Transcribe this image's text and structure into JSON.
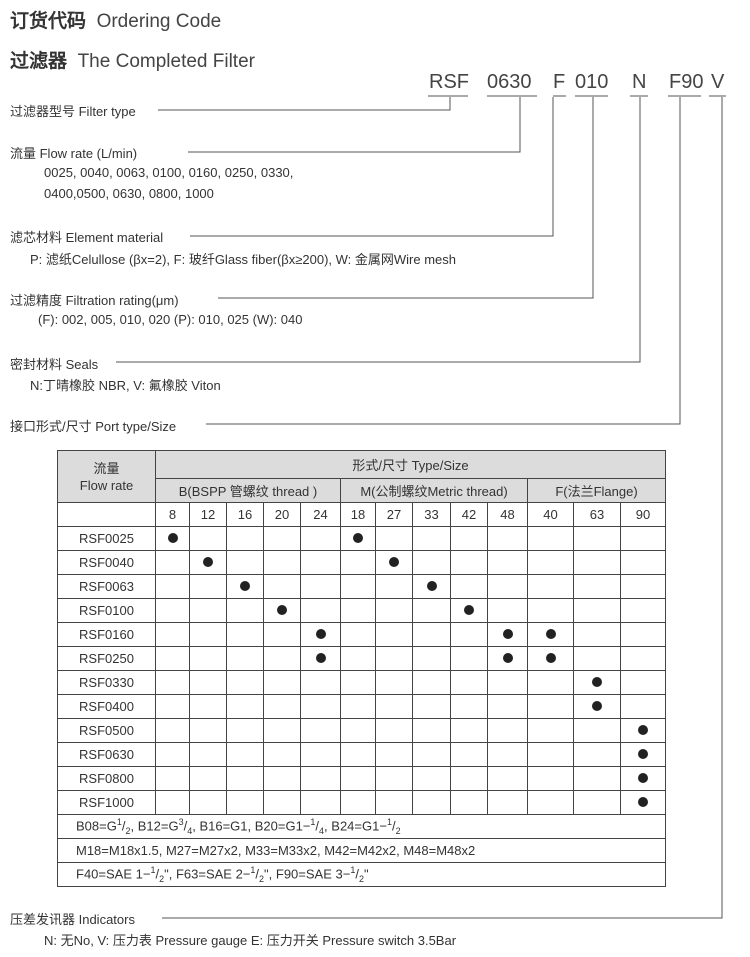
{
  "title1": {
    "cn": "订货代码",
    "en": "Ordering Code"
  },
  "title2": {
    "cn": "过滤器",
    "en": "The Completed Filter"
  },
  "code": [
    "RSF",
    "0630",
    "F",
    "010",
    "N",
    "F90",
    "V"
  ],
  "fields": [
    {
      "label": "过滤器型号 Filter type"
    },
    {
      "label": "流量 Flow rate (L/min)",
      "desc": [
        "0025, 0040, 0063, 0100, 0160, 0250, 0330,",
        "0400,0500, 0630, 0800, 1000"
      ]
    },
    {
      "label": "滤芯材料 Element material",
      "desc": [
        "P: 滤纸Celullose (βx=2),  F: 玻纤Glass fiber(βx≥200), W: 金属网Wire mesh"
      ]
    },
    {
      "label": "过滤精度 Filtration rating(μm)",
      "desc": [
        "(F): 002, 005, 010, 020 (P): 010, 025 (W): 040"
      ]
    },
    {
      "label": "密封材料 Seals",
      "desc": [
        "N:丁晴橡胶 NBR,  V: 氟橡胶 Viton"
      ]
    },
    {
      "label": "接口形式/尺寸 Port type/Size"
    },
    {
      "label": "压差发讯器 Indicators",
      "desc": [
        "N: 无No,  V: 压力表 Pressure gauge  E: 压力开关 Pressure switch 3.5Bar"
      ]
    }
  ],
  "table": {
    "flow_cn": "流量",
    "flow_en": "Flow rate",
    "type_header": "形式/尺寸  Type/Size",
    "groups": [
      "B(BSPP 管螺纹 thread )",
      "M(公制螺纹Metric thread)",
      "F(法兰Flange)"
    ],
    "sizes": [
      "8",
      "12",
      "16",
      "20",
      "24",
      "18",
      "27",
      "33",
      "42",
      "48",
      "40",
      "63",
      "90"
    ],
    "rows": [
      {
        "model": "RSF0025",
        "marks": [
          0,
          5
        ]
      },
      {
        "model": "RSF0040",
        "marks": [
          1,
          6
        ]
      },
      {
        "model": "RSF0063",
        "marks": [
          2,
          7
        ]
      },
      {
        "model": "RSF0100",
        "marks": [
          3,
          8
        ]
      },
      {
        "model": "RSF0160",
        "marks": [
          4,
          9,
          10
        ]
      },
      {
        "model": "RSF0250",
        "marks": [
          4,
          9,
          10
        ]
      },
      {
        "model": "RSF0330",
        "marks": [
          11
        ]
      },
      {
        "model": "RSF0400",
        "marks": [
          11
        ]
      },
      {
        "model": "RSF0500",
        "marks": [
          12
        ]
      },
      {
        "model": "RSF0630",
        "marks": [
          12
        ]
      },
      {
        "model": "RSF0800",
        "marks": [
          12
        ]
      },
      {
        "model": "RSF1000",
        "marks": [
          12
        ]
      }
    ],
    "notes": [
      "B08=G<sup>1</sup>/<sub>2</sub>,  B12=G<sup>3</sup>/<sub>4</sub>, B16=G1, B20=G1−<sup>1</sup>/<sub>4</sub>, B24=G1−<sup>1</sup>/<sub>2</sub>",
      "M18=M18x1.5, M27=M27x2, M33=M33x2, M42=M42x2, M48=M48x2",
      "F40=SAE 1−<sup>1</sup>/<sub>2</sub>\",  F63=SAE 2−<sup>1</sup>/<sub>2</sub>\",  F90=SAE 3−<sup>1</sup>/<sub>2</sub>\""
    ]
  }
}
